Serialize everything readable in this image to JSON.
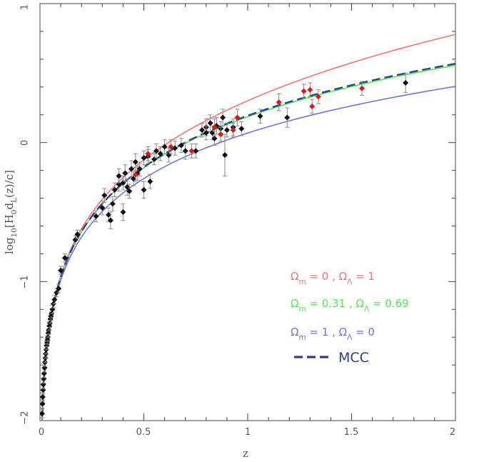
{
  "chart_data": {
    "type": "scatter",
    "xlabel": "z",
    "ylabel": "log10[H0 dL(z)/c]",
    "xlim": [
      0,
      2
    ],
    "ylim": [
      -2,
      1
    ],
    "x_ticks": [
      "0",
      "0.5",
      "1",
      "1.5",
      "2"
    ],
    "y_ticks": [
      "−2",
      "−1",
      "0",
      "1"
    ],
    "grid": false,
    "legend_position": "bottom-right",
    "legend": [
      {
        "name": "curve_lambda",
        "label": "Ωm = 0 , ΩΛ = 1",
        "color": "#ff7070",
        "style": "solid"
      },
      {
        "name": "curve_lcdm",
        "label": "Ωm = 0.31 , ΩΛ = 0.69",
        "color": "#50e850",
        "style": "solid"
      },
      {
        "name": "curve_matter",
        "label": "Ωm = 1 , ΩΛ = 0",
        "color": "#6f73ea",
        "style": "solid"
      },
      {
        "name": "curve_mcc",
        "label": "MCC",
        "color": "#2a3f8f",
        "style": "dashed"
      }
    ],
    "series": [
      {
        "name": "curve_lambda",
        "color": "#ff7070",
        "omega_m": 0,
        "omega_l": 1
      },
      {
        "name": "curve_lcdm",
        "color": "#50e850",
        "omega_m": 0.31,
        "omega_l": 0.69
      },
      {
        "name": "curve_matter",
        "color": "#6f73ea",
        "omega_m": 1,
        "omega_l": 0
      },
      {
        "name": "curve_mcc",
        "color": "#2a3f8f",
        "omega_m": 0.28,
        "omega_l": 0.72,
        "dashed": true
      }
    ],
    "points_black": [
      [
        0.01,
        -1.95,
        0.03
      ],
      [
        0.012,
        -1.88,
        0.03
      ],
      [
        0.013,
        -1.83,
        0.03
      ],
      [
        0.015,
        -1.78,
        0.03
      ],
      [
        0.016,
        -1.74,
        0.03
      ],
      [
        0.018,
        -1.7,
        0.03
      ],
      [
        0.02,
        -1.66,
        0.03
      ],
      [
        0.022,
        -1.62,
        0.03
      ],
      [
        0.024,
        -1.58,
        0.03
      ],
      [
        0.026,
        -1.55,
        0.03
      ],
      [
        0.028,
        -1.52,
        0.03
      ],
      [
        0.03,
        -1.49,
        0.03
      ],
      [
        0.032,
        -1.46,
        0.03
      ],
      [
        0.034,
        -1.44,
        0.03
      ],
      [
        0.036,
        -1.42,
        0.03
      ],
      [
        0.038,
        -1.4,
        0.03
      ],
      [
        0.04,
        -1.37,
        0.03
      ],
      [
        0.042,
        -1.35,
        0.03
      ],
      [
        0.045,
        -1.32,
        0.03
      ],
      [
        0.048,
        -1.3,
        0.03
      ],
      [
        0.05,
        -1.27,
        0.03
      ],
      [
        0.053,
        -1.25,
        0.03
      ],
      [
        0.056,
        -1.23,
        0.03
      ],
      [
        0.06,
        -1.2,
        0.03
      ],
      [
        0.065,
        -1.16,
        0.03
      ],
      [
        0.07,
        -1.13,
        0.03
      ],
      [
        0.08,
        -1.08,
        0.03
      ],
      [
        0.09,
        -1.05,
        0.03
      ],
      [
        0.1,
        -0.92,
        0.03
      ],
      [
        0.12,
        -0.83,
        0.03
      ],
      [
        0.17,
        -0.7,
        0.03
      ],
      [
        0.18,
        -0.66,
        0.03
      ],
      [
        0.27,
        -0.53,
        0.04
      ],
      [
        0.3,
        -0.47,
        0.05
      ],
      [
        0.31,
        -0.38,
        0.05
      ],
      [
        0.33,
        -0.52,
        0.05
      ],
      [
        0.34,
        -0.56,
        0.06
      ],
      [
        0.35,
        -0.44,
        0.05
      ],
      [
        0.36,
        -0.34,
        0.05
      ],
      [
        0.38,
        -0.3,
        0.05
      ],
      [
        0.38,
        -0.24,
        0.05
      ],
      [
        0.4,
        -0.29,
        0.05
      ],
      [
        0.4,
        -0.5,
        0.06
      ],
      [
        0.41,
        -0.22,
        0.06
      ],
      [
        0.42,
        -0.32,
        0.06
      ],
      [
        0.43,
        -0.35,
        0.05
      ],
      [
        0.44,
        -0.19,
        0.06
      ],
      [
        0.45,
        -0.26,
        0.05
      ],
      [
        0.46,
        -0.14,
        0.06
      ],
      [
        0.47,
        -0.22,
        0.05
      ],
      [
        0.48,
        -0.19,
        0.05
      ],
      [
        0.5,
        -0.11,
        0.05
      ],
      [
        0.5,
        -0.34,
        0.06
      ],
      [
        0.52,
        -0.1,
        0.05
      ],
      [
        0.53,
        -0.28,
        0.05
      ],
      [
        0.55,
        -0.12,
        0.04
      ],
      [
        0.56,
        -0.06,
        0.05
      ],
      [
        0.58,
        -0.08,
        0.05
      ],
      [
        0.6,
        -0.03,
        0.05
      ],
      [
        0.62,
        -0.09,
        0.05
      ],
      [
        0.65,
        -0.04,
        0.05
      ],
      [
        0.68,
        -0.02,
        0.05
      ],
      [
        0.7,
        -0.06,
        0.06
      ],
      [
        0.75,
        -0.06,
        0.05
      ],
      [
        0.78,
        0.09,
        0.05
      ],
      [
        0.8,
        0.11,
        0.06
      ],
      [
        0.8,
        0.07,
        0.05
      ],
      [
        0.82,
        0.14,
        0.06
      ],
      [
        0.83,
        0.07,
        0.05
      ],
      [
        0.84,
        0.03,
        0.05
      ],
      [
        0.85,
        0.12,
        0.06
      ],
      [
        0.87,
        0.1,
        0.05
      ],
      [
        0.88,
        0.18,
        0.06
      ],
      [
        0.89,
        -0.09,
        0.15
      ],
      [
        0.9,
        0.09,
        0.05
      ],
      [
        0.93,
        0.11,
        0.06
      ],
      [
        0.97,
        0.1,
        0.05
      ],
      [
        1.06,
        0.19,
        0.05
      ],
      [
        1.19,
        0.18,
        0.07
      ],
      [
        1.76,
        0.43,
        0.07
      ]
    ],
    "points_red": [
      [
        0.46,
        -0.23,
        0.05
      ],
      [
        0.52,
        -0.08,
        0.05
      ],
      [
        0.63,
        -0.03,
        0.05
      ],
      [
        0.73,
        -0.06,
        0.05
      ],
      [
        0.84,
        0.11,
        0.06
      ],
      [
        0.87,
        0.06,
        0.05
      ],
      [
        0.93,
        0.09,
        0.05
      ],
      [
        0.95,
        0.18,
        0.06
      ],
      [
        1.15,
        0.29,
        0.06
      ],
      [
        1.27,
        0.37,
        0.05
      ],
      [
        1.3,
        0.38,
        0.05
      ],
      [
        1.31,
        0.26,
        0.05
      ],
      [
        1.34,
        0.33,
        0.05
      ],
      [
        1.55,
        0.39,
        0.05
      ]
    ]
  }
}
